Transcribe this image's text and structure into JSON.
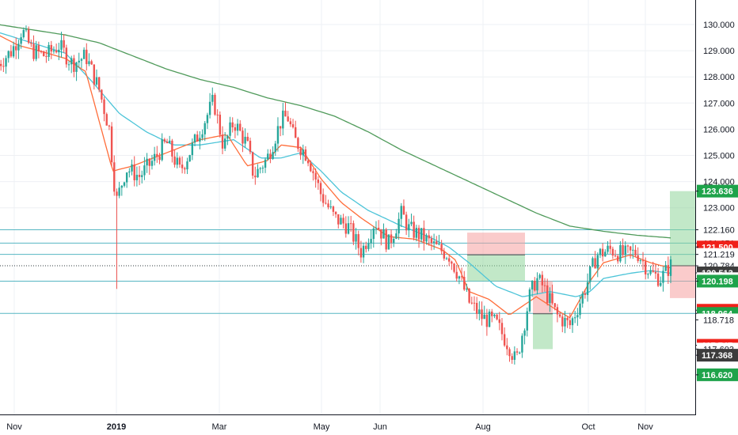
{
  "chart_data": {
    "type": "candlestick",
    "x_ticks": [
      "Nov",
      "2019",
      "Mar",
      "May",
      "Jun",
      "Aug",
      "Oct",
      "Nov"
    ],
    "y_ticks": [
      130.0,
      129.0,
      128.0,
      127.0,
      126.0,
      125.0,
      124.0,
      123.0
    ],
    "y_range": [
      116.0,
      130.5
    ],
    "grid": true,
    "colors": {
      "up": "#26a69a",
      "down": "#ef5350",
      "ema_fast": "#ff6d3a",
      "ema_mid": "#4cc4d8",
      "ema_slow": "#4f9a5a",
      "hline": "#56b6c2",
      "green_tag": "#1ea34a",
      "red_tag": "#f0211a",
      "dark_tag": "#3c3c3c",
      "green_zone": "#8fd59a",
      "red_zone": "#f5a0a0"
    },
    "price_tags": [
      {
        "value": "123.636",
        "style": "green"
      },
      {
        "value": "122.160",
        "style": "plain"
      },
      {
        "value": "121.651",
        "style": "plain"
      },
      {
        "value": "121.500",
        "style": "red"
      },
      {
        "value": "121.219",
        "style": "plain"
      },
      {
        "value": "120.784",
        "style": "plain"
      },
      {
        "value": "120.513",
        "style": "dark"
      },
      {
        "value": "120.292",
        "style": "plain"
      },
      {
        "value": "120.198",
        "style": "green"
      },
      {
        "value": "119.086",
        "style": "red"
      },
      {
        "value": "118.964",
        "style": "green"
      },
      {
        "value": "118.718",
        "style": "plain"
      },
      {
        "value": "117.747",
        "style": "red"
      },
      {
        "value": "117.603",
        "style": "plain"
      },
      {
        "value": "117.368",
        "style": "dark"
      },
      {
        "value": "116.620",
        "style": "green"
      }
    ],
    "horizontal_levels": [
      122.16,
      121.651,
      121.219,
      120.784,
      120.198,
      118.964
    ],
    "dotted_level": 120.784,
    "ema_fast_anchors": [
      [
        0,
        129.6
      ],
      [
        0.03,
        129.2
      ],
      [
        0.06,
        129.0
      ],
      [
        0.1,
        128.7
      ],
      [
        0.13,
        128.2
      ],
      [
        0.15,
        126.3
      ],
      [
        0.17,
        124.4
      ],
      [
        0.2,
        124.6
      ],
      [
        0.23,
        124.9
      ],
      [
        0.27,
        125.3
      ],
      [
        0.3,
        125.6
      ],
      [
        0.34,
        125.8
      ],
      [
        0.37,
        124.6
      ],
      [
        0.4,
        124.8
      ],
      [
        0.42,
        125.4
      ],
      [
        0.45,
        125.3
      ],
      [
        0.48,
        124.1
      ],
      [
        0.51,
        123.2
      ],
      [
        0.54,
        122.6
      ],
      [
        0.58,
        121.9
      ],
      [
        0.62,
        121.8
      ],
      [
        0.66,
        121.4
      ],
      [
        0.68,
        121.0
      ],
      [
        0.7,
        119.8
      ],
      [
        0.73,
        119.5
      ],
      [
        0.76,
        118.9
      ],
      [
        0.8,
        119.6
      ],
      [
        0.83,
        119.1
      ],
      [
        0.85,
        118.8
      ],
      [
        0.88,
        120.2
      ],
      [
        0.9,
        120.9
      ],
      [
        0.94,
        121.2
      ],
      [
        0.97,
        120.9
      ],
      [
        1.0,
        120.7
      ]
    ],
    "ema_mid_anchors": [
      [
        0,
        129.7
      ],
      [
        0.05,
        129.3
      ],
      [
        0.1,
        128.9
      ],
      [
        0.14,
        127.8
      ],
      [
        0.18,
        126.6
      ],
      [
        0.22,
        125.9
      ],
      [
        0.26,
        125.4
      ],
      [
        0.3,
        125.4
      ],
      [
        0.35,
        125.6
      ],
      [
        0.39,
        124.9
      ],
      [
        0.42,
        124.9
      ],
      [
        0.45,
        125.1
      ],
      [
        0.48,
        124.4
      ],
      [
        0.51,
        123.6
      ],
      [
        0.55,
        122.9
      ],
      [
        0.6,
        122.3
      ],
      [
        0.64,
        121.9
      ],
      [
        0.67,
        121.5
      ],
      [
        0.7,
        120.9
      ],
      [
        0.74,
        120.0
      ],
      [
        0.78,
        119.6
      ],
      [
        0.82,
        119.8
      ],
      [
        0.86,
        119.6
      ],
      [
        0.88,
        119.8
      ],
      [
        0.9,
        120.3
      ],
      [
        0.94,
        120.5
      ],
      [
        0.97,
        120.6
      ],
      [
        1.0,
        120.5
      ]
    ],
    "ema_slow_anchors": [
      [
        0,
        130.0
      ],
      [
        0.1,
        129.6
      ],
      [
        0.15,
        129.3
      ],
      [
        0.2,
        128.8
      ],
      [
        0.25,
        128.3
      ],
      [
        0.3,
        127.9
      ],
      [
        0.35,
        127.6
      ],
      [
        0.4,
        127.2
      ],
      [
        0.45,
        126.9
      ],
      [
        0.5,
        126.5
      ],
      [
        0.55,
        125.9
      ],
      [
        0.6,
        125.2
      ],
      [
        0.65,
        124.6
      ],
      [
        0.7,
        124.0
      ],
      [
        0.75,
        123.4
      ],
      [
        0.8,
        122.8
      ],
      [
        0.85,
        122.3
      ],
      [
        0.9,
        122.1
      ],
      [
        0.95,
        121.95
      ],
      [
        1.0,
        121.85
      ]
    ],
    "price_path_anchors": [
      [
        0,
        128.5
      ],
      [
        0.02,
        129.0
      ],
      [
        0.035,
        129.8
      ],
      [
        0.05,
        129.0
      ],
      [
        0.07,
        128.8
      ],
      [
        0.09,
        129.2
      ],
      [
        0.11,
        128.5
      ],
      [
        0.13,
        128.8
      ],
      [
        0.15,
        127.5
      ],
      [
        0.165,
        126.0
      ],
      [
        0.175,
        123.2
      ],
      [
        0.19,
        124.5
      ],
      [
        0.21,
        124.2
      ],
      [
        0.23,
        124.8
      ],
      [
        0.25,
        125.5
      ],
      [
        0.27,
        124.4
      ],
      [
        0.29,
        125.4
      ],
      [
        0.31,
        126.5
      ],
      [
        0.32,
        127.1
      ],
      [
        0.335,
        125.3
      ],
      [
        0.35,
        126.3
      ],
      [
        0.37,
        125.4
      ],
      [
        0.38,
        124.2
      ],
      [
        0.4,
        124.9
      ],
      [
        0.42,
        126.3
      ],
      [
        0.43,
        126.5
      ],
      [
        0.44,
        125.6
      ],
      [
        0.46,
        125.0
      ],
      [
        0.48,
        123.5
      ],
      [
        0.5,
        122.6
      ],
      [
        0.52,
        122.3
      ],
      [
        0.54,
        121.3
      ],
      [
        0.56,
        122.5
      ],
      [
        0.58,
        121.6
      ],
      [
        0.6,
        122.8
      ],
      [
        0.61,
        122.2
      ],
      [
        0.63,
        121.9
      ],
      [
        0.65,
        121.5
      ],
      [
        0.67,
        121.2
      ],
      [
        0.685,
        120.4
      ],
      [
        0.7,
        119.4
      ],
      [
        0.72,
        118.8
      ],
      [
        0.74,
        118.6
      ],
      [
        0.76,
        117.7
      ],
      [
        0.77,
        117.1
      ],
      [
        0.78,
        118.3
      ],
      [
        0.79,
        119.6
      ],
      [
        0.8,
        120.3
      ],
      [
        0.81,
        120.0
      ],
      [
        0.83,
        118.9
      ],
      [
        0.85,
        118.5
      ],
      [
        0.87,
        119.7
      ],
      [
        0.89,
        121.2
      ],
      [
        0.91,
        121.4
      ],
      [
        0.93,
        121.2
      ],
      [
        0.95,
        121.3
      ],
      [
        0.97,
        120.5
      ],
      [
        0.985,
        120.3
      ],
      [
        1.0,
        120.8
      ]
    ]
  }
}
